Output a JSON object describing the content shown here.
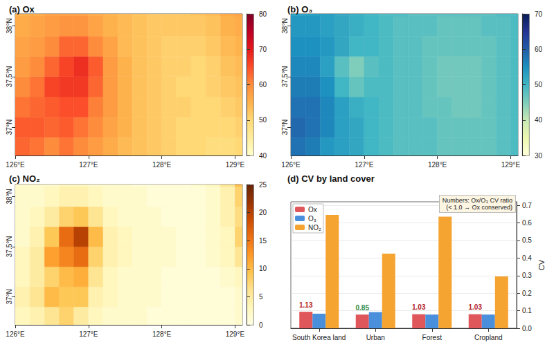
{
  "chart_data": [
    {
      "type": "heatmap",
      "title": "(a) Ox",
      "x": [
        126.1,
        126.3,
        126.5,
        126.7,
        126.9,
        127.1,
        127.3,
        127.5,
        127.7,
        127.9,
        128.1,
        128.3,
        128.5,
        128.7,
        128.9,
        129.1
      ],
      "y": [
        36.8,
        37.0,
        37.2,
        37.4,
        37.6,
        37.8,
        38.0,
        38.2
      ],
      "cells": [
        [
          63,
          62,
          60,
          62,
          60,
          58,
          56,
          54,
          53,
          52,
          51,
          50,
          50,
          49,
          49,
          50
        ],
        [
          64,
          64,
          63,
          64,
          62,
          60,
          57,
          55,
          53,
          52,
          51,
          50,
          50,
          50,
          50,
          51
        ],
        [
          62,
          63,
          64,
          65,
          65,
          61,
          58,
          55,
          53,
          52,
          51,
          51,
          50,
          50,
          51,
          52
        ],
        [
          60,
          62,
          66,
          67,
          67,
          63,
          58,
          55,
          53,
          52,
          51,
          50,
          50,
          51,
          52,
          53
        ],
        [
          58,
          60,
          63,
          66,
          68,
          64,
          58,
          55,
          53,
          52,
          51,
          51,
          50,
          51,
          53,
          54
        ],
        [
          57,
          58,
          60,
          63,
          63,
          60,
          57,
          54,
          53,
          52,
          51,
          51,
          51,
          52,
          54,
          55
        ],
        [
          56,
          57,
          58,
          59,
          59,
          57,
          55,
          54,
          53,
          52,
          52,
          52,
          52,
          53,
          55,
          56
        ],
        [
          55,
          56,
          57,
          57,
          57,
          56,
          55,
          54,
          53,
          52,
          52,
          52,
          53,
          54,
          56,
          57
        ]
      ],
      "xlim": [
        126.0,
        129.1
      ],
      "ylim": [
        36.72,
        38.12
      ],
      "xticks": [
        {
          "value": 126,
          "label": "126°E"
        },
        {
          "value": 127,
          "label": "127°E"
        },
        {
          "value": 128,
          "label": "128°E"
        },
        {
          "value": 129,
          "label": "129°E"
        }
      ],
      "yticks": [
        {
          "value": 37,
          "label": "37°N"
        },
        {
          "value": 37.5,
          "label": "37.5°N"
        },
        {
          "value": 38,
          "label": "38°N"
        }
      ],
      "colorbar": {
        "range": [
          40,
          80
        ],
        "ticks": [
          40,
          50,
          60,
          70,
          80
        ]
      }
    },
    {
      "type": "heatmap",
      "title": "(b) O₃",
      "x": [
        126.1,
        126.3,
        126.5,
        126.7,
        126.9,
        127.1,
        127.3,
        127.5,
        127.7,
        127.9,
        128.1,
        128.3,
        128.5,
        128.7,
        128.9,
        129.1
      ],
      "y": [
        36.8,
        37.0,
        37.2,
        37.4,
        37.6,
        37.8,
        38.0,
        38.2
      ],
      "cells": [
        [
          58,
          57,
          54,
          53,
          52,
          50,
          49,
          48,
          48,
          48,
          47,
          47,
          47,
          47,
          48,
          49
        ],
        [
          59,
          58,
          56,
          53,
          52,
          50,
          49,
          48,
          48,
          48,
          47,
          47,
          47,
          47,
          48,
          49
        ],
        [
          58,
          58,
          56,
          53,
          51,
          50,
          49,
          48,
          48,
          47,
          47,
          46,
          46,
          47,
          48,
          49
        ],
        [
          57,
          57,
          55,
          50,
          47,
          49,
          49,
          48,
          48,
          47,
          46,
          46,
          46,
          47,
          48,
          49
        ],
        [
          56,
          56,
          53,
          48,
          45,
          48,
          49,
          48,
          48,
          47,
          46,
          46,
          46,
          47,
          48,
          49
        ],
        [
          55,
          55,
          54,
          52,
          50,
          50,
          49,
          48,
          48,
          47,
          47,
          47,
          47,
          47,
          48,
          49
        ],
        [
          54,
          54,
          53,
          52,
          51,
          50,
          49,
          48,
          48,
          48,
          47,
          47,
          47,
          48,
          48,
          49
        ],
        [
          53,
          53,
          53,
          52,
          51,
          50,
          49,
          49,
          48,
          48,
          48,
          48,
          48,
          48,
          49,
          49
        ]
      ],
      "xlim": [
        126.0,
        129.1
      ],
      "ylim": [
        36.72,
        38.12
      ],
      "xticks": [
        {
          "value": 126,
          "label": "126°E"
        },
        {
          "value": 127,
          "label": "127°E"
        },
        {
          "value": 128,
          "label": "128°E"
        },
        {
          "value": 129,
          "label": "129°E"
        }
      ],
      "yticks": [
        {
          "value": 37,
          "label": "37°N"
        },
        {
          "value": 37.5,
          "label": "37.5°N"
        },
        {
          "value": 38,
          "label": "38°N"
        }
      ],
      "colorbar": {
        "range": [
          30,
          70
        ],
        "ticks": [
          30,
          40,
          50,
          60,
          70
        ]
      }
    },
    {
      "type": "heatmap",
      "title": "(c) NO₂",
      "x": [
        126.1,
        126.3,
        126.5,
        126.7,
        126.9,
        127.1,
        127.3,
        127.5,
        127.7,
        127.9,
        128.1,
        128.3,
        128.5,
        128.7,
        128.9,
        129.1
      ],
      "y": [
        36.8,
        37.0,
        37.2,
        37.4,
        37.6,
        37.8,
        38.0,
        38.2
      ],
      "cells": [
        [
          3,
          4,
          6,
          8,
          5,
          3,
          2,
          2,
          2,
          1,
          1,
          1,
          1,
          1,
          1,
          2
        ],
        [
          4,
          6,
          10,
          9,
          9,
          4,
          3,
          2,
          2,
          2,
          1,
          1,
          1,
          1,
          1,
          2
        ],
        [
          3,
          5,
          8,
          10,
          11,
          6,
          3,
          2,
          2,
          2,
          1,
          1,
          1,
          1,
          2,
          3
        ],
        [
          3,
          5,
          12,
          14,
          16,
          8,
          4,
          3,
          2,
          2,
          2,
          1,
          1,
          2,
          3,
          6
        ],
        [
          2,
          4,
          9,
          16,
          20,
          10,
          4,
          3,
          2,
          2,
          2,
          1,
          1,
          2,
          3,
          8
        ],
        [
          2,
          3,
          5,
          8,
          9,
          6,
          3,
          2,
          2,
          2,
          1,
          1,
          1,
          2,
          4,
          7
        ],
        [
          2,
          2,
          3,
          4,
          4,
          3,
          2,
          2,
          2,
          1,
          1,
          1,
          1,
          2,
          4,
          8
        ],
        [
          2,
          2,
          2,
          3,
          3,
          2,
          2,
          2,
          1,
          1,
          1,
          1,
          2,
          3,
          6,
          10
        ]
      ],
      "xlim": [
        126.0,
        129.1
      ],
      "ylim": [
        36.72,
        38.12
      ],
      "xticks": [
        {
          "value": 126,
          "label": "126°E"
        },
        {
          "value": 127,
          "label": "127°E"
        },
        {
          "value": 128,
          "label": "128°E"
        },
        {
          "value": 129,
          "label": "129°E"
        }
      ],
      "yticks": [
        {
          "value": 37,
          "label": "37°N"
        },
        {
          "value": 37.5,
          "label": "37.5°N"
        },
        {
          "value": 38,
          "label": "38°N"
        }
      ],
      "colorbar": {
        "range": [
          0,
          25
        ],
        "ticks": [
          0,
          5,
          10,
          15,
          20,
          25
        ]
      }
    },
    {
      "type": "bar",
      "title": "(d) CV by land cover",
      "categories": [
        "South Korea land",
        "Urban",
        "Forest",
        "Cropland"
      ],
      "series": [
        {
          "name": "Ox",
          "color": "#e0575b",
          "values": [
            0.094,
            0.078,
            0.08,
            0.08
          ]
        },
        {
          "name": "O₃",
          "color": "#4a8fdc",
          "values": [
            0.083,
            0.092,
            0.078,
            0.078
          ]
        },
        {
          "name": "NO₂",
          "color": "#f5a431",
          "values": [
            0.645,
            0.425,
            0.635,
            0.295
          ]
        }
      ],
      "ylabel": "CV",
      "ylim": [
        0,
        0.72
      ],
      "yticks": [
        {
          "value": 0,
          "label": "0.0"
        },
        0.1,
        0.2,
        0.3,
        0.4,
        0.5,
        0.6,
        0.7
      ],
      "grid": true,
      "legend": "upper left",
      "annotations": {
        "lines": [
          "Numbers: Ox/O₃ CV ratio",
          "(< 1.0 → Ox conserved)"
        ],
        "ratio": {
          "values": [
            1.13,
            0.85,
            1.03,
            1.03
          ],
          "colors": [
            "#b22222",
            "#2e8b3e",
            "#b22222",
            "#b22222"
          ]
        }
      }
    }
  ]
}
